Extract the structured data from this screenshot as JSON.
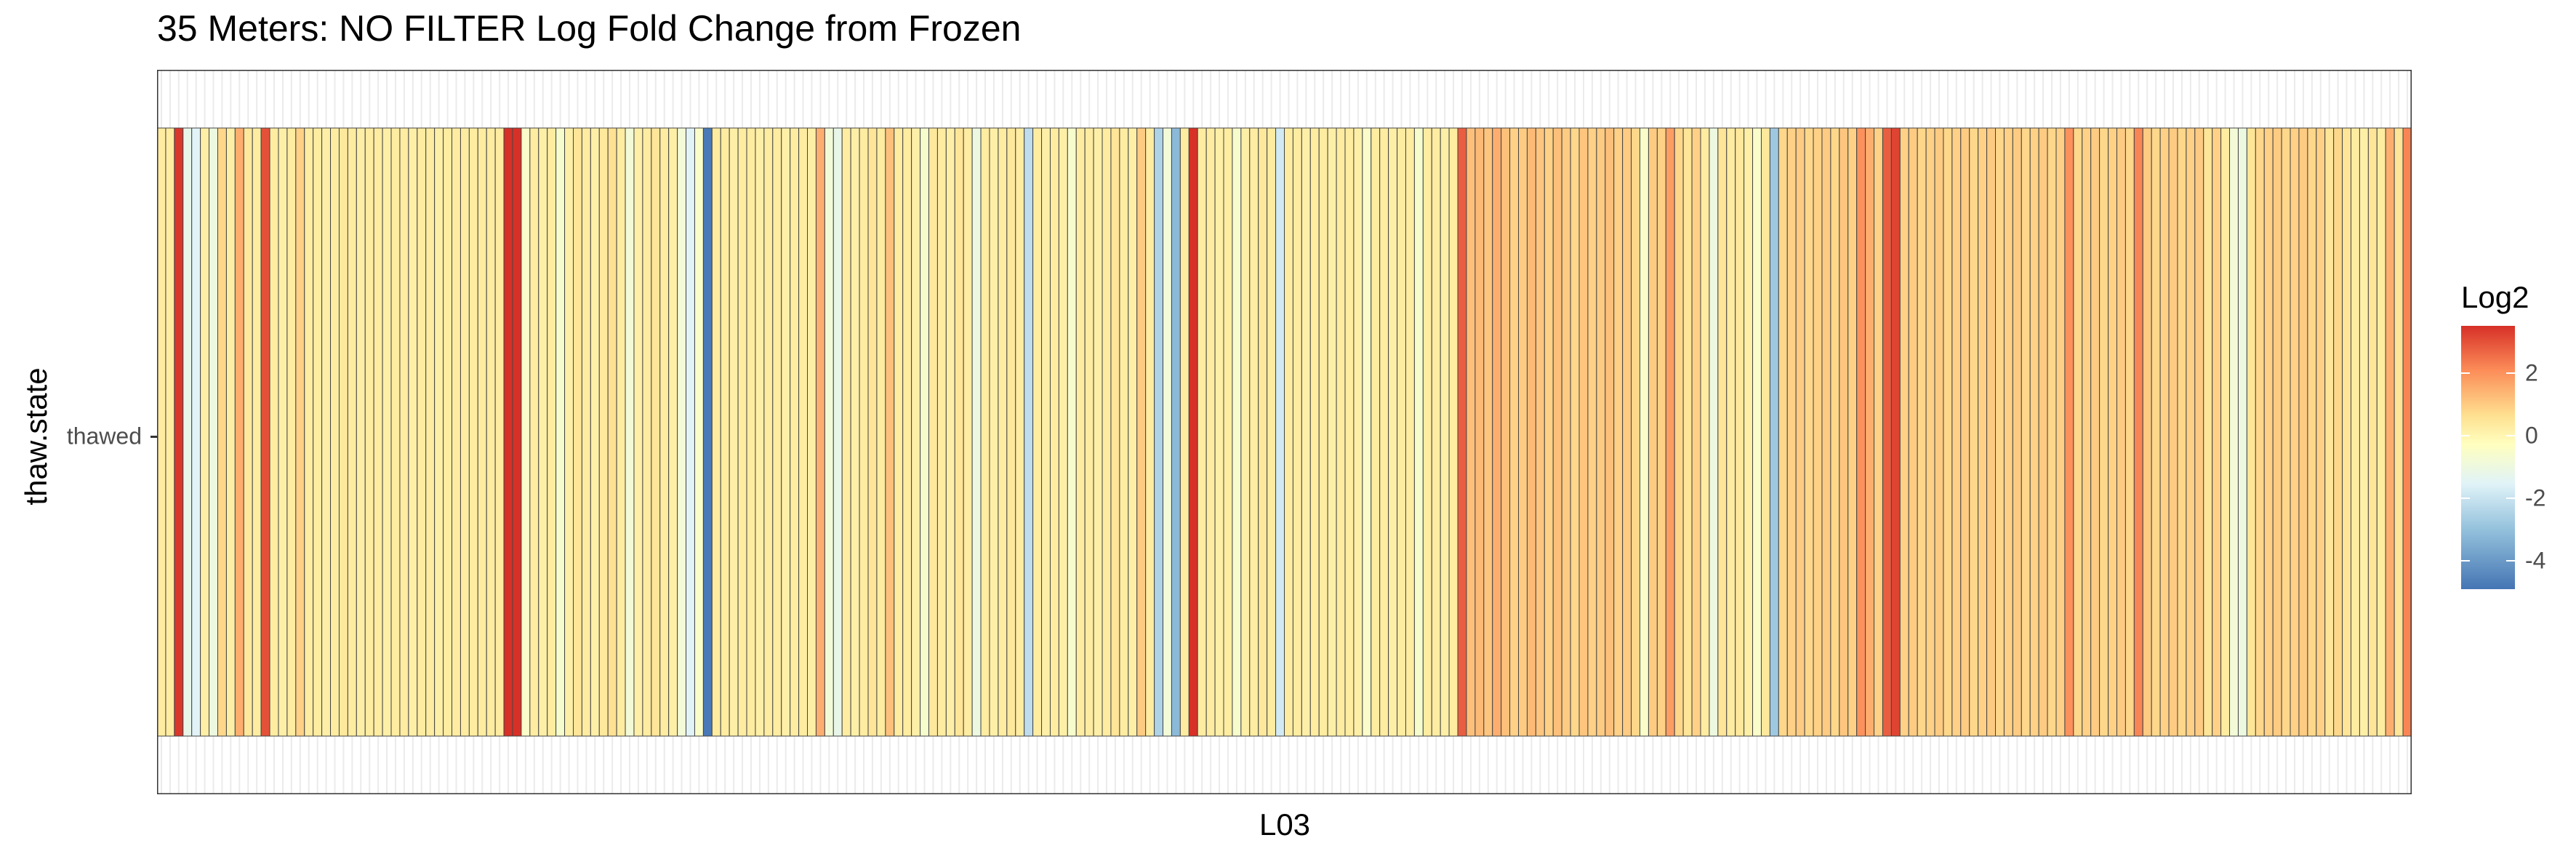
{
  "chart_data": {
    "type": "heatmap",
    "title": "35 Meters: NO FILTER Log Fold Change from Frozen",
    "xlabel": "L03",
    "ylabel": "thaw.state",
    "y_categories": [
      "thawed"
    ],
    "legend": {
      "title": "Log2",
      "ticks": [
        2,
        0,
        -2,
        -4
      ],
      "range": [
        -4.9,
        3.5
      ],
      "placement": "right",
      "colors": [
        "#4575b4",
        "#91bfdb",
        "#e0f3f8",
        "#ffffbf",
        "#fee090",
        "#fc8d59",
        "#d73027"
      ]
    },
    "grid": true,
    "values": [
      0.3,
      0.3,
      3.4,
      -1.2,
      -1.5,
      0.2,
      -1.0,
      0.8,
      0.2,
      1.5,
      0.4,
      0.3,
      3.0,
      0.3,
      0.2,
      0.3,
      0.9,
      0.3,
      0.3,
      0.2,
      0.3,
      0.4,
      0.3,
      0.2,
      0.3,
      0.3,
      0.2,
      0.3,
      0.3,
      0.2,
      0.3,
      0.3,
      0.2,
      0.3,
      0.3,
      0.3,
      0.3,
      0.3,
      0.3,
      0.3,
      3.5,
      3.5,
      -0.5,
      0.3,
      0.2,
      0.3,
      -0.6,
      0.2,
      0.5,
      0.3,
      0.2,
      0.4,
      0.6,
      0.3,
      -0.8,
      0.2,
      0.3,
      0.5,
      0.3,
      0.2,
      -0.8,
      -1.5,
      -0.5,
      -4.8,
      0.3,
      0.3,
      0.2,
      0.3,
      0.3,
      0.2,
      0.3,
      0.3,
      0.2,
      0.3,
      0.3,
      0.2,
      1.5,
      -0.8,
      -1.2,
      0.3,
      0.2,
      0.3,
      0.5,
      0.3,
      1.2,
      0.3,
      0.3,
      0.2,
      -0.6,
      0.4,
      0.3,
      0.2,
      0.5,
      0.3,
      -1.0,
      0.3,
      0.2,
      0.3,
      0.4,
      0.3,
      -2.2,
      0.3,
      0.2,
      0.3,
      0.2,
      -0.6,
      0.3,
      0.3,
      0.2,
      0.3,
      0.5,
      0.3,
      0.2,
      1.0,
      0.3,
      -2.5,
      -0.8,
      -3.2,
      0.3,
      3.5,
      0.3,
      0.3,
      0.2,
      0.3,
      -0.6,
      0.2,
      0.3,
      0.4,
      0.3,
      -1.8,
      0.3,
      0.3,
      0.2,
      0.3,
      0.3,
      0.2,
      0.3,
      0.3,
      0.2,
      -0.5,
      0.3,
      0.3,
      0.2,
      0.3,
      0.3,
      -0.6,
      0.3,
      0.3,
      0.2,
      0.3,
      2.8,
      1.2,
      1.3,
      1.1,
      1.5,
      1.2,
      0.9,
      1.0,
      1.3,
      1.1,
      0.9,
      1.2,
      1.0,
      0.8,
      1.1,
      0.9,
      1.0,
      1.2,
      0.9,
      1.0,
      0.8,
      -0.5,
      1.0,
      0.9,
      1.8,
      0.8,
      0.5,
      0.9,
      0.3,
      -1.0,
      0.5,
      0.3,
      0.4,
      0.2,
      -0.5,
      0.4,
      -2.8,
      0.8,
      0.9,
      1.0,
      0.8,
      0.9,
      1.0,
      0.8,
      1.1,
      0.9,
      2.0,
      1.5,
      0.9,
      2.8,
      3.2,
      0.9,
      1.0,
      0.8,
      0.9,
      1.0,
      0.8,
      0.9,
      1.0,
      0.8,
      0.9,
      1.0,
      0.8,
      0.9,
      1.0,
      0.8,
      0.9,
      1.0,
      0.8,
      0.9,
      2.0,
      0.8,
      0.9,
      1.0,
      0.8,
      0.9,
      1.0,
      0.8,
      2.2,
      1.0,
      0.8,
      0.9,
      1.0,
      0.8,
      0.9,
      1.0,
      0.5,
      0.9,
      0.3,
      -0.8,
      -1.0,
      0.5,
      0.8,
      0.9,
      1.0,
      0.8,
      0.9,
      1.0,
      0.8,
      0.9,
      0.5,
      0.8,
      0.5,
      0.3,
      0.2,
      0.5,
      0.3,
      1.5,
      0.5,
      2.2
    ]
  }
}
